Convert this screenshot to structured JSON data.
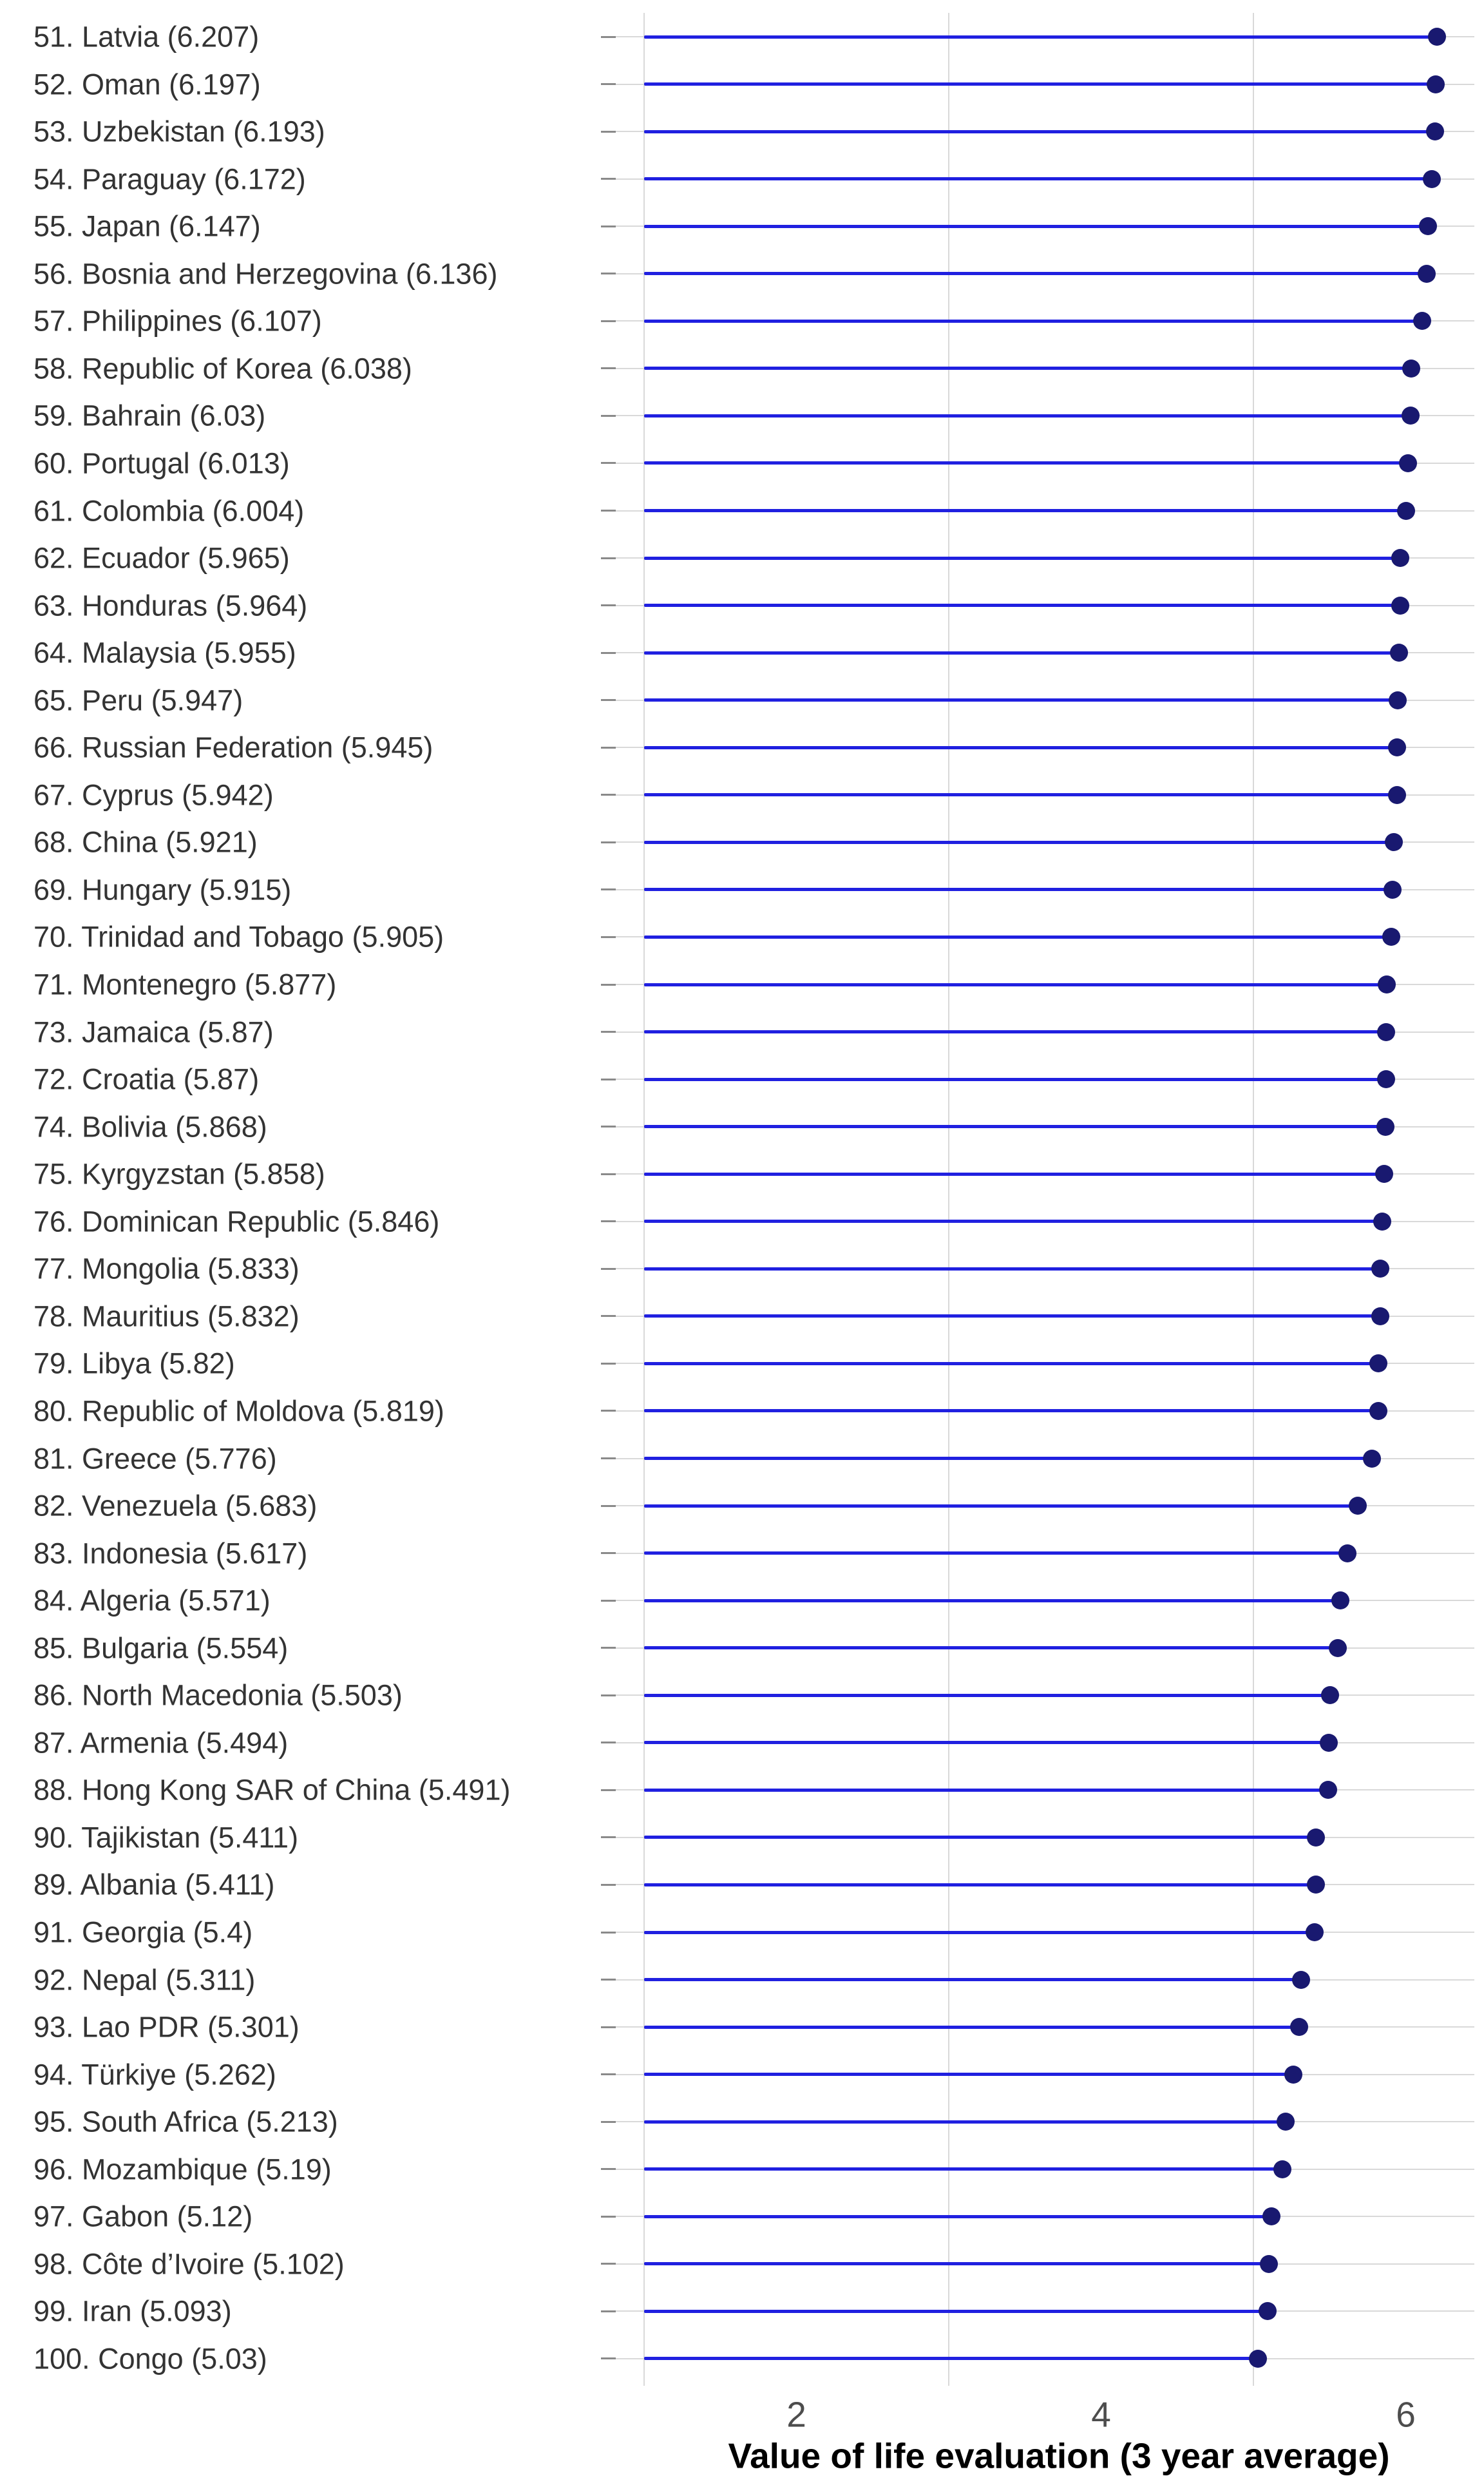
{
  "chart_data": {
    "type": "scatter",
    "variant": "lollipop-dot-plot",
    "title": "",
    "xlabel": "Value of life evaluation (3 year average)",
    "ylabel": "",
    "xlim": [
      1,
      6.45
    ],
    "xticks": [
      2,
      4,
      6
    ],
    "x_minor_gridlines": [
      1,
      3,
      5
    ],
    "grid": "vertical light-gray lines at 1,3,5; light-gray horizontal gridline per row",
    "legend_position": "none",
    "stem_baseline_value": 1,
    "colors": {
      "stem": "#2020e0",
      "dot": "#191970",
      "gridline": "#d9d9d9",
      "tick_mark": "#8a8a8a",
      "row_label_text": "#333333",
      "axis_tick_text": "#4d4d4d",
      "axis_title_text": "#000000",
      "background": "#ffffff"
    },
    "points": [
      {
        "rank": 51,
        "country": "Latvia",
        "value": 6.207,
        "label": "51. Latvia (6.207)"
      },
      {
        "rank": 52,
        "country": "Oman",
        "value": 6.197,
        "label": "52. Oman (6.197)"
      },
      {
        "rank": 53,
        "country": "Uzbekistan",
        "value": 6.193,
        "label": "53. Uzbekistan (6.193)"
      },
      {
        "rank": 54,
        "country": "Paraguay",
        "value": 6.172,
        "label": "54. Paraguay (6.172)"
      },
      {
        "rank": 55,
        "country": "Japan",
        "value": 6.147,
        "label": "55. Japan (6.147)"
      },
      {
        "rank": 56,
        "country": "Bosnia and Herzegovina",
        "value": 6.136,
        "label": "56. Bosnia and Herzegovina (6.136)"
      },
      {
        "rank": 57,
        "country": "Philippines",
        "value": 6.107,
        "label": "57. Philippines (6.107)"
      },
      {
        "rank": 58,
        "country": "Republic of Korea",
        "value": 6.038,
        "label": "58. Republic of Korea (6.038)"
      },
      {
        "rank": 59,
        "country": "Bahrain",
        "value": 6.03,
        "label": "59. Bahrain (6.03)"
      },
      {
        "rank": 60,
        "country": "Portugal",
        "value": 6.013,
        "label": "60. Portugal (6.013)"
      },
      {
        "rank": 61,
        "country": "Colombia",
        "value": 6.004,
        "label": "61. Colombia (6.004)"
      },
      {
        "rank": 62,
        "country": "Ecuador",
        "value": 5.965,
        "label": "62. Ecuador (5.965)"
      },
      {
        "rank": 63,
        "country": "Honduras",
        "value": 5.964,
        "label": "63. Honduras (5.964)"
      },
      {
        "rank": 64,
        "country": "Malaysia",
        "value": 5.955,
        "label": "64. Malaysia (5.955)"
      },
      {
        "rank": 65,
        "country": "Peru",
        "value": 5.947,
        "label": "65. Peru (5.947)"
      },
      {
        "rank": 66,
        "country": "Russian Federation",
        "value": 5.945,
        "label": "66. Russian Federation (5.945)"
      },
      {
        "rank": 67,
        "country": "Cyprus",
        "value": 5.942,
        "label": "67. Cyprus (5.942)"
      },
      {
        "rank": 68,
        "country": "China",
        "value": 5.921,
        "label": "68. China (5.921)"
      },
      {
        "rank": 69,
        "country": "Hungary",
        "value": 5.915,
        "label": "69. Hungary (5.915)"
      },
      {
        "rank": 70,
        "country": "Trinidad and Tobago",
        "value": 5.905,
        "label": "70. Trinidad and Tobago (5.905)"
      },
      {
        "rank": 71,
        "country": "Montenegro",
        "value": 5.877,
        "label": "71. Montenegro (5.877)"
      },
      {
        "rank": 73,
        "country": "Jamaica",
        "value": 5.87,
        "label": "73. Jamaica (5.87)"
      },
      {
        "rank": 72,
        "country": "Croatia",
        "value": 5.87,
        "label": "72. Croatia (5.87)"
      },
      {
        "rank": 74,
        "country": "Bolivia",
        "value": 5.868,
        "label": "74. Bolivia (5.868)"
      },
      {
        "rank": 75,
        "country": "Kyrgyzstan",
        "value": 5.858,
        "label": "75. Kyrgyzstan (5.858)"
      },
      {
        "rank": 76,
        "country": "Dominican Republic",
        "value": 5.846,
        "label": "76. Dominican Republic (5.846)"
      },
      {
        "rank": 77,
        "country": "Mongolia",
        "value": 5.833,
        "label": "77. Mongolia (5.833)"
      },
      {
        "rank": 78,
        "country": "Mauritius",
        "value": 5.832,
        "label": "78. Mauritius (5.832)"
      },
      {
        "rank": 79,
        "country": "Libya",
        "value": 5.82,
        "label": "79. Libya (5.82)"
      },
      {
        "rank": 80,
        "country": "Republic of Moldova",
        "value": 5.819,
        "label": "80. Republic of Moldova (5.819)"
      },
      {
        "rank": 81,
        "country": "Greece",
        "value": 5.776,
        "label": "81. Greece (5.776)"
      },
      {
        "rank": 82,
        "country": "Venezuela",
        "value": 5.683,
        "label": "82. Venezuela (5.683)"
      },
      {
        "rank": 83,
        "country": "Indonesia",
        "value": 5.617,
        "label": "83. Indonesia (5.617)"
      },
      {
        "rank": 84,
        "country": "Algeria",
        "value": 5.571,
        "label": "84. Algeria (5.571)"
      },
      {
        "rank": 85,
        "country": "Bulgaria",
        "value": 5.554,
        "label": "85. Bulgaria (5.554)"
      },
      {
        "rank": 86,
        "country": "North Macedonia",
        "value": 5.503,
        "label": "86. North Macedonia (5.503)"
      },
      {
        "rank": 87,
        "country": "Armenia",
        "value": 5.494,
        "label": "87. Armenia (5.494)"
      },
      {
        "rank": 88,
        "country": "Hong Kong SAR of China",
        "value": 5.491,
        "label": "88. Hong Kong SAR of China (5.491)"
      },
      {
        "rank": 90,
        "country": "Tajikistan",
        "value": 5.411,
        "label": "90. Tajikistan (5.411)"
      },
      {
        "rank": 89,
        "country": "Albania",
        "value": 5.411,
        "label": "89. Albania (5.411)"
      },
      {
        "rank": 91,
        "country": "Georgia",
        "value": 5.4,
        "label": "91. Georgia (5.4)"
      },
      {
        "rank": 92,
        "country": "Nepal",
        "value": 5.311,
        "label": "92. Nepal (5.311)"
      },
      {
        "rank": 93,
        "country": "Lao PDR",
        "value": 5.301,
        "label": "93. Lao PDR (5.301)"
      },
      {
        "rank": 94,
        "country": "Türkiye",
        "value": 5.262,
        "label": "94. Türkiye (5.262)"
      },
      {
        "rank": 95,
        "country": "South Africa",
        "value": 5.213,
        "label": "95. South Africa (5.213)"
      },
      {
        "rank": 96,
        "country": "Mozambique",
        "value": 5.19,
        "label": "96. Mozambique (5.19)"
      },
      {
        "rank": 97,
        "country": "Gabon",
        "value": 5.12,
        "label": "97. Gabon (5.12)"
      },
      {
        "rank": 98,
        "country": "Côte d’Ivoire",
        "value": 5.102,
        "label": "98. Côte d’Ivoire (5.102)"
      },
      {
        "rank": 99,
        "country": "Iran",
        "value": 5.093,
        "label": "99. Iran (5.093)"
      },
      {
        "rank": 100,
        "country": "Congo",
        "value": 5.03,
        "label": "100. Congo (5.03)"
      }
    ]
  }
}
